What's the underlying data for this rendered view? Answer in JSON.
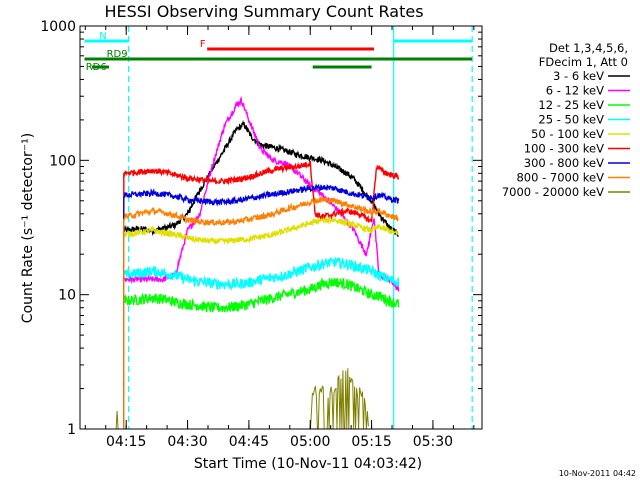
{
  "chart_data": {
    "type": "line",
    "title": "HESSI Observing Summary Count Rates",
    "xlabel": "Start Time (10-Nov-11 04:03:42)",
    "ylabel": "Count Rate (s⁻¹ detector⁻¹)",
    "yscale": "log",
    "xlim": [
      4.0617,
      5.7
    ],
    "ylim": [
      1,
      1000
    ],
    "x_unit": "hours UT",
    "x_ticks": [
      {
        "value": 4.25,
        "label": "04:15"
      },
      {
        "value": 4.5,
        "label": "04:30"
      },
      {
        "value": 4.75,
        "label": "04:45"
      },
      {
        "value": 5.0,
        "label": "05:00"
      },
      {
        "value": 5.25,
        "label": "05:15"
      },
      {
        "value": 5.5,
        "label": "05:30"
      }
    ],
    "y_ticks": [
      {
        "value": 1,
        "label": "1"
      },
      {
        "value": 10,
        "label": "10"
      },
      {
        "value": 100,
        "label": "100"
      },
      {
        "value": 1000,
        "label": "1000"
      }
    ],
    "legend_header": [
      "Det 1,3,4,5,6,",
      "FDecim 1, Att 0"
    ],
    "legend_position": "right outside",
    "series": [
      {
        "name": "3 - 6 keV",
        "color": "#000000",
        "points": [
          [
            4.24,
            30
          ],
          [
            4.3,
            31
          ],
          [
            4.36,
            30
          ],
          [
            4.4,
            31
          ],
          [
            4.45,
            33
          ],
          [
            4.5,
            40
          ],
          [
            4.55,
            60
          ],
          [
            4.6,
            85
          ],
          [
            4.65,
            120
          ],
          [
            4.7,
            170
          ],
          [
            4.73,
            185
          ],
          [
            4.76,
            150
          ],
          [
            4.8,
            130
          ],
          [
            4.85,
            125
          ],
          [
            4.9,
            118
          ],
          [
            4.95,
            110
          ],
          [
            5.0,
            105
          ],
          [
            5.05,
            100
          ],
          [
            5.1,
            90
          ],
          [
            5.15,
            80
          ],
          [
            5.18,
            72
          ],
          [
            5.2,
            65
          ],
          [
            5.23,
            55
          ],
          [
            5.25,
            50
          ],
          [
            5.28,
            40
          ],
          [
            5.32,
            32
          ],
          [
            5.36,
            28
          ]
        ]
      },
      {
        "name": "6 - 12 keV",
        "color": "#ff00ff",
        "points": [
          [
            4.24,
            13
          ],
          [
            4.3,
            13
          ],
          [
            4.36,
            13
          ],
          [
            4.4,
            13
          ],
          [
            4.45,
            14
          ],
          [
            4.5,
            30
          ],
          [
            4.55,
            40
          ],
          [
            4.6,
            90
          ],
          [
            4.65,
            180
          ],
          [
            4.7,
            260
          ],
          [
            4.72,
            280
          ],
          [
            4.75,
            200
          ],
          [
            4.8,
            120
          ],
          [
            4.85,
            100
          ],
          [
            4.9,
            95
          ],
          [
            4.95,
            80
          ],
          [
            5.0,
            65
          ],
          [
            5.05,
            55
          ],
          [
            5.1,
            45
          ],
          [
            5.15,
            35
          ],
          [
            5.18,
            30
          ],
          [
            5.2,
            25
          ],
          [
            5.23,
            20
          ],
          [
            5.26,
            38
          ],
          [
            5.28,
            14
          ],
          [
            5.32,
            13
          ],
          [
            5.36,
            11
          ]
        ]
      },
      {
        "name": "12 - 25 keV",
        "color": "#00ff00",
        "points": [
          [
            4.24,
            9
          ],
          [
            4.3,
            9.2
          ],
          [
            4.36,
            9.5
          ],
          [
            4.4,
            9.3
          ],
          [
            4.45,
            8.8
          ],
          [
            4.5,
            8.5
          ],
          [
            4.55,
            8.3
          ],
          [
            4.6,
            8
          ],
          [
            4.65,
            8
          ],
          [
            4.7,
            8.2
          ],
          [
            4.75,
            8.5
          ],
          [
            4.8,
            9
          ],
          [
            4.85,
            9.5
          ],
          [
            4.9,
            10
          ],
          [
            4.95,
            10.5
          ],
          [
            5.0,
            11
          ],
          [
            5.05,
            12
          ],
          [
            5.1,
            12.5
          ],
          [
            5.15,
            12
          ],
          [
            5.2,
            11
          ],
          [
            5.25,
            10
          ],
          [
            5.28,
            9.8
          ],
          [
            5.32,
            9
          ],
          [
            5.36,
            8.5
          ]
        ]
      },
      {
        "name": "25 - 50 keV",
        "color": "#00ffff",
        "points": [
          [
            4.24,
            14
          ],
          [
            4.3,
            14.5
          ],
          [
            4.36,
            15
          ],
          [
            4.4,
            14.5
          ],
          [
            4.45,
            14
          ],
          [
            4.5,
            13
          ],
          [
            4.55,
            12.5
          ],
          [
            4.6,
            12.2
          ],
          [
            4.65,
            12
          ],
          [
            4.7,
            12
          ],
          [
            4.75,
            12.3
          ],
          [
            4.8,
            13
          ],
          [
            4.85,
            13.5
          ],
          [
            4.9,
            14
          ],
          [
            4.95,
            15
          ],
          [
            5.0,
            16
          ],
          [
            5.05,
            17
          ],
          [
            5.1,
            17.5
          ],
          [
            5.15,
            17
          ],
          [
            5.2,
            16
          ],
          [
            5.25,
            15
          ],
          [
            5.28,
            14
          ],
          [
            5.32,
            13
          ],
          [
            5.36,
            12.5
          ]
        ]
      },
      {
        "name": "50 - 100 keV",
        "color": "#e0e000",
        "points": [
          [
            4.24,
            28
          ],
          [
            4.3,
            29
          ],
          [
            4.36,
            30
          ],
          [
            4.4,
            29
          ],
          [
            4.45,
            28
          ],
          [
            4.5,
            26.5
          ],
          [
            4.55,
            25.5
          ],
          [
            4.6,
            25
          ],
          [
            4.65,
            25
          ],
          [
            4.7,
            25.5
          ],
          [
            4.75,
            26
          ],
          [
            4.8,
            27
          ],
          [
            4.85,
            28
          ],
          [
            4.9,
            30
          ],
          [
            4.95,
            32
          ],
          [
            5.0,
            34
          ],
          [
            5.05,
            36
          ],
          [
            5.1,
            36
          ],
          [
            5.15,
            34
          ],
          [
            5.2,
            32
          ],
          [
            5.25,
            30
          ],
          [
            5.28,
            32
          ],
          [
            5.32,
            30
          ],
          [
            5.36,
            28
          ]
        ]
      },
      {
        "name": "100 - 300 keV",
        "color": "#ff0000",
        "points": [
          [
            4.24,
            80
          ],
          [
            4.3,
            82
          ],
          [
            4.36,
            84
          ],
          [
            4.4,
            82
          ],
          [
            4.45,
            78
          ],
          [
            4.5,
            74
          ],
          [
            4.55,
            72
          ],
          [
            4.6,
            70
          ],
          [
            4.65,
            70
          ],
          [
            4.7,
            72
          ],
          [
            4.75,
            75
          ],
          [
            4.8,
            80
          ],
          [
            4.85,
            85
          ],
          [
            4.9,
            88
          ],
          [
            4.95,
            90
          ],
          [
            5.0,
            95
          ],
          [
            5.02,
            40
          ],
          [
            5.05,
            38
          ],
          [
            5.1,
            40
          ],
          [
            5.15,
            42
          ],
          [
            5.2,
            40
          ],
          [
            5.25,
            35
          ],
          [
            5.27,
            90
          ],
          [
            5.3,
            82
          ],
          [
            5.33,
            78
          ],
          [
            5.36,
            75
          ]
        ]
      },
      {
        "name": "300 - 800 keV",
        "color": "#0000dd",
        "points": [
          [
            4.24,
            55
          ],
          [
            4.3,
            56
          ],
          [
            4.36,
            57
          ],
          [
            4.4,
            56
          ],
          [
            4.45,
            54
          ],
          [
            4.5,
            51
          ],
          [
            4.55,
            50
          ],
          [
            4.6,
            49
          ],
          [
            4.65,
            49
          ],
          [
            4.7,
            50
          ],
          [
            4.75,
            52
          ],
          [
            4.8,
            54
          ],
          [
            4.85,
            56
          ],
          [
            4.9,
            58
          ],
          [
            4.95,
            60
          ],
          [
            5.0,
            62
          ],
          [
            5.05,
            63
          ],
          [
            5.1,
            62
          ],
          [
            5.15,
            58
          ],
          [
            5.2,
            55
          ],
          [
            5.25,
            53
          ],
          [
            5.28,
            55
          ],
          [
            5.32,
            52
          ],
          [
            5.36,
            50
          ]
        ]
      },
      {
        "name": "800 - 7000 keV",
        "color": "#ff8000",
        "points": [
          [
            4.24,
            38
          ],
          [
            4.3,
            40
          ],
          [
            4.36,
            42
          ],
          [
            4.4,
            41
          ],
          [
            4.45,
            39
          ],
          [
            4.5,
            36
          ],
          [
            4.55,
            35
          ],
          [
            4.6,
            34.5
          ],
          [
            4.65,
            34.5
          ],
          [
            4.7,
            35
          ],
          [
            4.75,
            36.5
          ],
          [
            4.8,
            38
          ],
          [
            4.85,
            40
          ],
          [
            4.9,
            43
          ],
          [
            4.95,
            46
          ],
          [
            5.0,
            49
          ],
          [
            5.05,
            51
          ],
          [
            5.1,
            50
          ],
          [
            5.15,
            47
          ],
          [
            5.2,
            44
          ],
          [
            5.25,
            41
          ],
          [
            5.28,
            42
          ],
          [
            5.32,
            39
          ],
          [
            5.36,
            37
          ]
        ]
      },
      {
        "name": "7000 - 20000 keV",
        "color": "#808000",
        "points": [
          [
            4.205,
            1
          ],
          [
            4.21,
            1.8
          ],
          [
            4.215,
            1
          ],
          [
            4.25,
            1
          ],
          [
            5.0,
            1
          ],
          [
            5.01,
            1.9
          ],
          [
            5.03,
            1.9
          ],
          [
            5.06,
            1.9
          ],
          [
            5.1,
            1.9
          ],
          [
            5.12,
            2.5
          ],
          [
            5.14,
            2.8
          ],
          [
            5.16,
            2.5
          ],
          [
            5.18,
            1.9
          ],
          [
            5.22,
            1.9
          ],
          [
            5.24,
            1
          ]
        ]
      }
    ],
    "annotations": [
      {
        "label": "N",
        "color": "#00ffff",
        "segments": [
          [
            4.08,
            4.26
          ],
          [
            5.34,
            5.66
          ]
        ]
      },
      {
        "label": "F",
        "color": "#ff0000",
        "segments": [
          [
            4.58,
            5.26
          ]
        ]
      },
      {
        "label": "RD9",
        "color": "#008000",
        "segments": [
          [
            4.08,
            5.26
          ],
          [
            5.26,
            5.66
          ]
        ]
      },
      {
        "label": "RD6",
        "color": "#008000",
        "segments": [
          [
            4.11,
            4.18
          ],
          [
            5.01,
            5.25
          ]
        ]
      }
    ],
    "vertical_markers": [
      {
        "x": 4.26,
        "color": "#00ffff",
        "style": "dashed"
      },
      {
        "x": 5.34,
        "color": "#00ffff",
        "style": "solid"
      },
      {
        "x": 5.66,
        "color": "#00ffff",
        "style": "dashed"
      }
    ],
    "grid": false
  },
  "footer": {
    "timestamp": "10-Nov-2011 04:42"
  }
}
